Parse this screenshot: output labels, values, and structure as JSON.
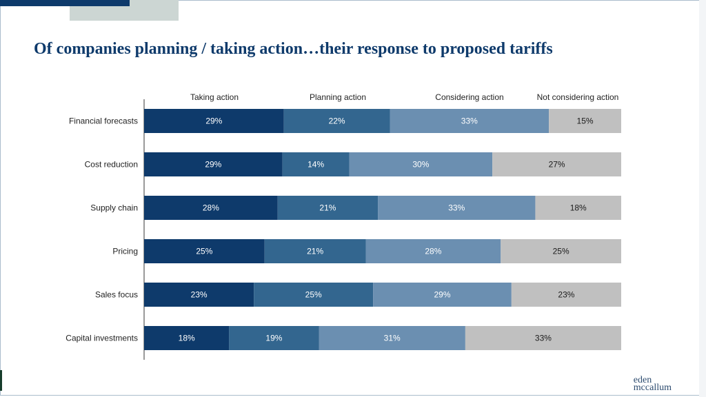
{
  "title": "Of companies planning / taking action…their response to proposed tariffs",
  "logo": {
    "line1": "eden",
    "line2": "mccallum"
  },
  "colors": {
    "taking": "#0e3a6b",
    "planning": "#33668f",
    "considering": "#6b8fb1",
    "not_considering": "#c0c0c0",
    "title": "#0e3a6b"
  },
  "chart_data": {
    "type": "bar",
    "orientation": "horizontal",
    "stacked": true,
    "categories": [
      "Financial forecasts",
      "Cost reduction",
      "Supply chain",
      "Pricing",
      "Sales focus",
      "Capital investments"
    ],
    "series": [
      {
        "name": "Taking action",
        "values": [
          29,
          29,
          28,
          25,
          23,
          18
        ],
        "labels": [
          "29%",
          "29%",
          "28%",
          "25%",
          "23%",
          "18%"
        ]
      },
      {
        "name": "Planning action",
        "values": [
          22,
          14,
          21,
          21,
          25,
          19
        ],
        "labels": [
          "22%",
          "14%",
          "21%",
          "21%",
          "25%",
          "19%"
        ]
      },
      {
        "name": "Considering action",
        "values": [
          33,
          30,
          33,
          28,
          29,
          31
        ],
        "labels": [
          "33%",
          "30%",
          "33%",
          "28%",
          "29%",
          "31%"
        ]
      },
      {
        "name": "Not considering action",
        "values": [
          15,
          27,
          18,
          25,
          23,
          33
        ],
        "labels": [
          "15%",
          "27%",
          "18%",
          "25%",
          "23%",
          "33%"
        ]
      }
    ],
    "legend": "top",
    "grid": false
  }
}
